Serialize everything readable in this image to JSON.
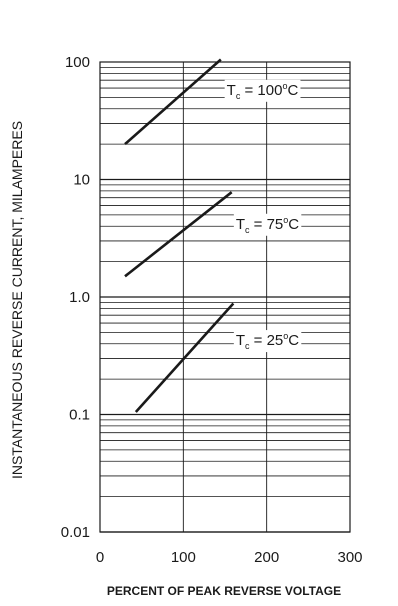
{
  "chart_data": {
    "type": "line",
    "title": "",
    "xlabel": "PERCENT OF PEAK REVERSE VOLTAGE",
    "ylabel": "INSTANTANEOUS REVERSE CURRENT, MILAMPERES",
    "xlim": [
      0,
      300
    ],
    "ylim": [
      0.01,
      100
    ],
    "yscale": "log",
    "grid": true,
    "xticks": [
      0,
      100,
      200,
      300
    ],
    "xtick_labels": [
      "0",
      "100",
      "200",
      "300"
    ],
    "yticks": [
      0.01,
      0.1,
      1,
      10,
      100
    ],
    "ytick_labels": [
      "0.01",
      "0.1",
      "1.0",
      "10",
      "100"
    ],
    "series": [
      {
        "name": "T_C = 100°C",
        "x": [
          30,
          145
        ],
        "y": [
          20,
          105
        ]
      },
      {
        "name": "T_C = 75°C",
        "x": [
          30,
          158
        ],
        "y": [
          1.5,
          7.8
        ]
      },
      {
        "name": "T_C = 25°C",
        "x": [
          43,
          160
        ],
        "y": [
          0.105,
          0.88
        ]
      }
    ],
    "annotations": [
      {
        "base": "T",
        "sub": "c",
        "eq": " = 100",
        "deg": "o",
        "unit": "C",
        "x": 152,
        "y": 58
      },
      {
        "base": "T",
        "sub": "c",
        "eq": " = 75",
        "deg": "o",
        "unit": "C",
        "x": 163,
        "y": 4.2
      },
      {
        "base": "T",
        "sub": "c",
        "eq": " = 25",
        "deg": "o",
        "unit": "C",
        "x": 163,
        "y": 0.43
      }
    ],
    "colors": {
      "line": "#1a1a1a",
      "grid": "#1a1a1a"
    }
  }
}
